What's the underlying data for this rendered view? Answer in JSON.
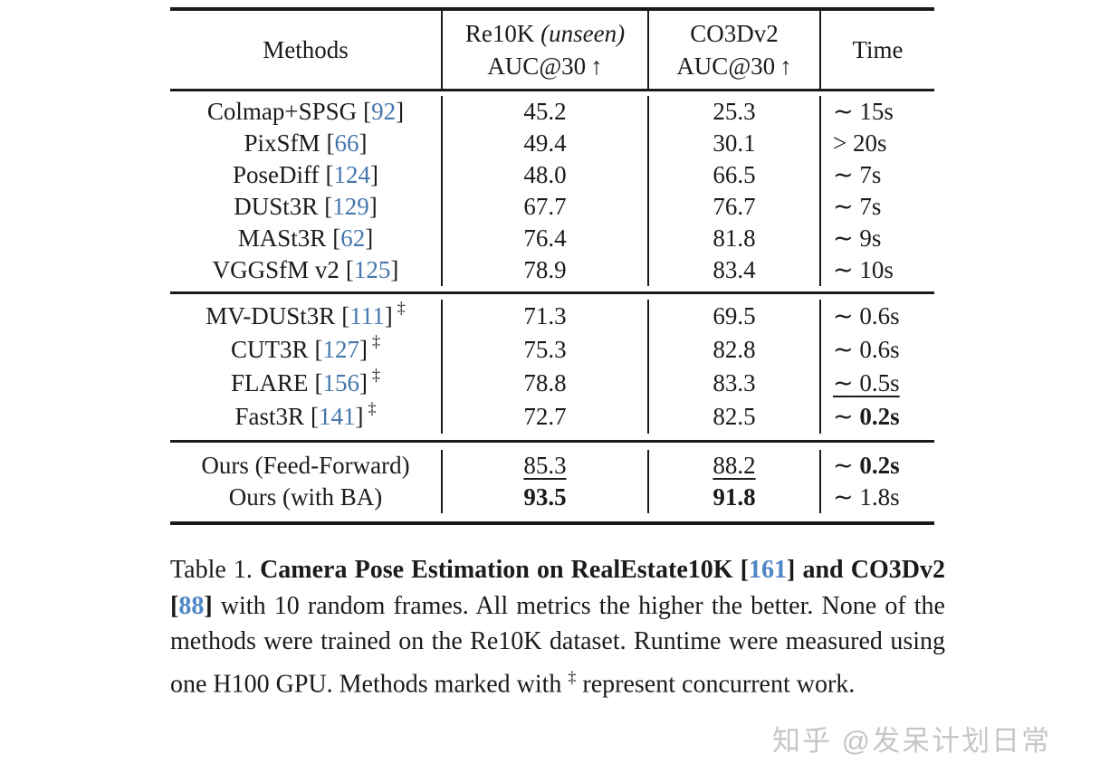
{
  "punct": {
    "lb": "[",
    "rb": "]"
  },
  "table": {
    "header": {
      "methods": "Methods",
      "col2_line1": "Re10K ",
      "col2_line1_italic": "(unseen)",
      "col2_line2": "AUC@30",
      "col3_line1": "CO3Dv2",
      "col3_line2": "AUC@30",
      "arrow": "↑",
      "time": "Time"
    },
    "groups": [
      {
        "rows": [
          {
            "method": "Colmap+SPSG",
            "cite": "92",
            "dagger": "",
            "re10k": {
              "v": "45.2",
              "s": "normal"
            },
            "co3d": {
              "v": "25.3",
              "s": "normal"
            },
            "time": {
              "rel": "∼",
              "v": " 15s",
              "s": "normal",
              "vs": "normal"
            }
          },
          {
            "method": "PixSfM",
            "cite": "66",
            "dagger": "",
            "re10k": {
              "v": "49.4",
              "s": "normal"
            },
            "co3d": {
              "v": "30.1",
              "s": "normal"
            },
            "time": {
              "rel": ">",
              "v": " 20s",
              "s": "normal",
              "vs": "normal"
            }
          },
          {
            "method": "PoseDiff",
            "cite": "124",
            "dagger": "",
            "re10k": {
              "v": "48.0",
              "s": "normal"
            },
            "co3d": {
              "v": "66.5",
              "s": "normal"
            },
            "time": {
              "rel": "∼",
              "v": " 7s",
              "s": "normal",
              "vs": "normal"
            }
          },
          {
            "method": "DUSt3R",
            "cite": "129",
            "dagger": "",
            "re10k": {
              "v": "67.7",
              "s": "normal"
            },
            "co3d": {
              "v": "76.7",
              "s": "normal"
            },
            "time": {
              "rel": "∼",
              "v": " 7s",
              "s": "normal",
              "vs": "normal"
            }
          },
          {
            "method": "MASt3R",
            "cite": "62",
            "dagger": "",
            "re10k": {
              "v": "76.4",
              "s": "normal"
            },
            "co3d": {
              "v": "81.8",
              "s": "normal"
            },
            "time": {
              "rel": "∼",
              "v": " 9s",
              "s": "normal",
              "vs": "normal"
            }
          },
          {
            "method": "VGGSfM v2",
            "cite": "125",
            "dagger": "",
            "re10k": {
              "v": "78.9",
              "s": "normal"
            },
            "co3d": {
              "v": "83.4",
              "s": "normal"
            },
            "time": {
              "rel": "∼",
              "v": " 10s",
              "s": "normal",
              "vs": "normal"
            }
          }
        ]
      },
      {
        "rows": [
          {
            "method": "MV-DUSt3R",
            "cite": "111",
            "dagger": "‡",
            "re10k": {
              "v": "71.3",
              "s": "normal"
            },
            "co3d": {
              "v": "69.5",
              "s": "normal"
            },
            "time": {
              "rel": "∼",
              "v": " 0.6s",
              "s": "normal",
              "vs": "normal"
            }
          },
          {
            "method": "CUT3R",
            "cite": "127",
            "dagger": "‡",
            "re10k": {
              "v": "75.3",
              "s": "normal"
            },
            "co3d": {
              "v": "82.8",
              "s": "normal"
            },
            "time": {
              "rel": "∼",
              "v": " 0.6s",
              "s": "normal",
              "vs": "normal"
            }
          },
          {
            "method": "FLARE",
            "cite": "156",
            "dagger": "‡",
            "re10k": {
              "v": "78.8",
              "s": "normal"
            },
            "co3d": {
              "v": "83.3",
              "s": "normal"
            },
            "time": {
              "rel": "∼",
              "v": " 0.5s",
              "s": "underline",
              "vs": "normal"
            }
          },
          {
            "method": "Fast3R",
            "cite": "141",
            "dagger": "‡",
            "re10k": {
              "v": "72.7",
              "s": "normal"
            },
            "co3d": {
              "v": "82.5",
              "s": "normal"
            },
            "time": {
              "rel": "∼",
              "v": " 0.2s",
              "s": "normal",
              "vs": "bold"
            }
          }
        ]
      },
      {
        "rows": [
          {
            "method": "Ours (Feed-Forward)",
            "re10k": {
              "v": "85.3",
              "s": "underline"
            },
            "co3d": {
              "v": "88.2",
              "s": "underline"
            },
            "time": {
              "rel": "∼",
              "v": " 0.2s",
              "s": "normal",
              "vs": "bold"
            }
          },
          {
            "method": "Ours (with BA)",
            "re10k": {
              "v": "93.5",
              "s": "bold"
            },
            "co3d": {
              "v": "91.8",
              "s": "bold"
            },
            "time": {
              "rel": "∼",
              "v": " 1.8s",
              "s": "normal",
              "vs": "normal"
            }
          }
        ]
      }
    ]
  },
  "caption": {
    "s1": "Table 1. ",
    "s2": "Camera Pose Estimation on RealEstate10K [",
    "cite1": "161",
    "s3": "] and CO3Dv2 [",
    "cite2": "88",
    "s4": "]",
    "s5": " with 10 random frames. All metrics the higher the better. None of the methods were trained on the Re10K dataset. Runtime were measured using one H100 GPU. Methods marked with ",
    "dagger": "‡",
    "s6": " represent concurrent work."
  },
  "watermark": "知乎 @发呆计划日常"
}
